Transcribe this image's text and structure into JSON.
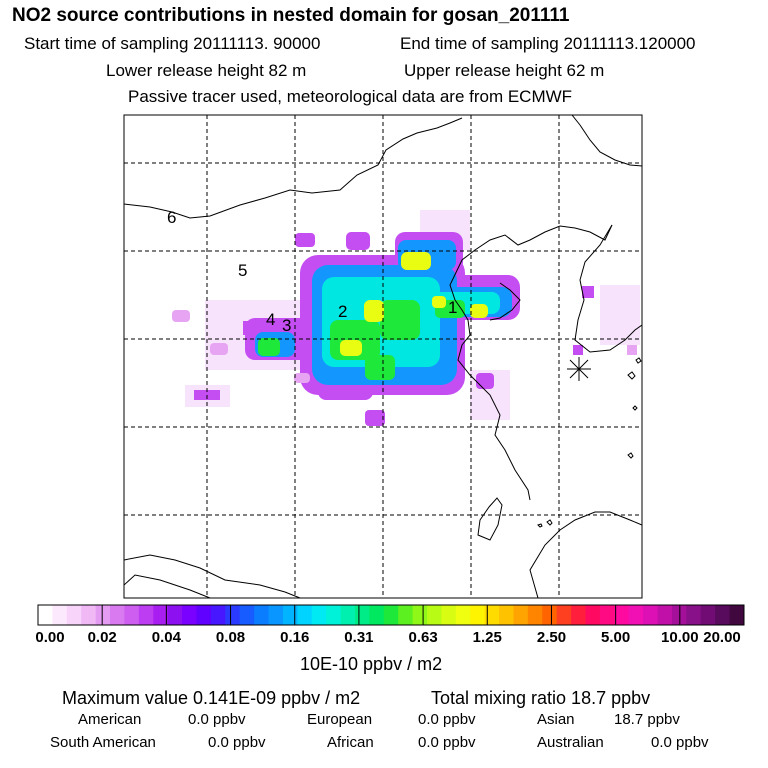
{
  "header": {
    "title": "NO2 source contributions in nested domain for gosan_201111",
    "start_label": "Start time of sampling 20111113. 90000",
    "end_label": "End time of sampling 20111113.120000",
    "lower_label": "Lower release height   82 m",
    "upper_label": "Upper release height   62 m",
    "info": "Passive tracer used, meteorological data are from ECMWF"
  },
  "map": {
    "source_labels": [
      "1",
      "2",
      "3",
      "4",
      "5",
      "6"
    ],
    "receptor_icon": "asterisk-receptor-icon",
    "land_color": "#ffffff",
    "coast_color": "#000000"
  },
  "colorbar": {
    "unit": "10E-10 ppbv / m2",
    "ticks": [
      "0.00",
      "0.02",
      "0.04",
      "0.08",
      "0.16",
      "0.31",
      "0.63",
      "1.25",
      "2.50",
      "5.00",
      "10.00",
      "20.00"
    ],
    "colors": [
      "#ffffff",
      "#fde9fd",
      "#f8d3fa",
      "#f1b8f6",
      "#e49cf2",
      "#d97af0",
      "#cd5ef0",
      "#bd3ef2",
      "#a81ef0",
      "#8d10f0",
      "#7a00ff",
      "#6000ff",
      "#4617ff",
      "#2a3aff",
      "#165cff",
      "#0a7dff",
      "#0a96ff",
      "#00b4ff",
      "#00d3ff",
      "#00eaf4",
      "#00f2d8",
      "#00f0b0",
      "#00ec86",
      "#00e860",
      "#1ee83a",
      "#5cf020",
      "#90f818",
      "#b8fb14",
      "#d8fd12",
      "#f0ff10",
      "#fff400",
      "#ffdc00",
      "#ffc200",
      "#ffa400",
      "#ff8400",
      "#ff6400",
      "#ff4020",
      "#ff1f3c",
      "#ff0a60",
      "#ff0a82",
      "#ff0aa0",
      "#f010b4",
      "#dc10b4",
      "#c010a8",
      "#a4109a",
      "#881088",
      "#700c74",
      "#580a5c",
      "#40083f"
    ]
  },
  "footer": {
    "max_label": "Maximum value  0.141E-09 ppbv / m2",
    "total_label": "Total mixing ratio      18.7 ppbv",
    "american": "American",
    "american_val": "0.0 ppbv",
    "european": "European",
    "european_val": "0.0 ppbv",
    "asian": "Asian",
    "asian_val": "18.7 ppbv",
    "south_american": "South American",
    "south_american_val": "0.0 ppbv",
    "african": "African",
    "african_val": "0.0 ppbv",
    "australian": "Australian",
    "australian_val": "0.0 ppbv"
  }
}
